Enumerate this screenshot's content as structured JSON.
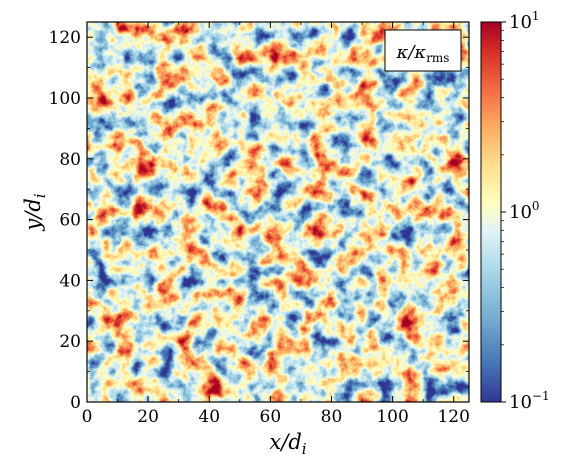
{
  "chart_data": {
    "type": "heatmap",
    "title": "",
    "xlabel": "x/d",
    "xlabel_sub": "i",
    "ylabel": "y/d",
    "ylabel_sub": "i",
    "xlim": [
      0,
      125
    ],
    "ylim": [
      0,
      125
    ],
    "x_ticks": [
      0,
      20,
      40,
      60,
      80,
      100,
      120
    ],
    "y_ticks": [
      0,
      20,
      40,
      60,
      80,
      100,
      120
    ],
    "x_tick_labels": [
      "0",
      "20",
      "40",
      "60",
      "80",
      "100",
      "120"
    ],
    "y_tick_labels": [
      "0",
      "20",
      "40",
      "60",
      "80",
      "100",
      "120"
    ],
    "colorbar": {
      "scale": "log",
      "range": [
        0.1,
        10
      ],
      "colormap": "RdYlBu_r",
      "tick_values": [
        0.1,
        1,
        10
      ],
      "tick_base": "10",
      "tick_exponents": [
        "−1",
        "0",
        "1"
      ]
    },
    "annotation": {
      "main": "κ/κ",
      "sub": "rms",
      "position": "top-right"
    },
    "colors": {
      "low": "#313695",
      "mid_low": "#74add1",
      "mid": "#ffffbf",
      "mid_high": "#f46d43",
      "high": "#a50026"
    }
  }
}
